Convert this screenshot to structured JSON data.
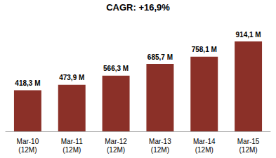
{
  "chart_data": {
    "type": "bar",
    "categories": [
      "Mar-10\n(12M)",
      "Mar-11\n(12M)",
      "Mar-12\n(12M)",
      "Mar-13\n(12M)",
      "Mar-14\n(12M)",
      "Mar-15\n(12M)"
    ],
    "values": [
      418.3,
      473.9,
      566.3,
      685.7,
      758.1,
      914.1
    ],
    "value_labels": [
      "418,3 M",
      "473,9 M",
      "566,3 M",
      "685,7 M",
      "758,1 M",
      "914,1 M"
    ],
    "color": "#8B3028",
    "ylim": [
      0,
      1150
    ],
    "annotations": [
      "CAGR: +16,9%"
    ],
    "data_labels": true,
    "tick_labels": "x",
    "grid": false
  }
}
